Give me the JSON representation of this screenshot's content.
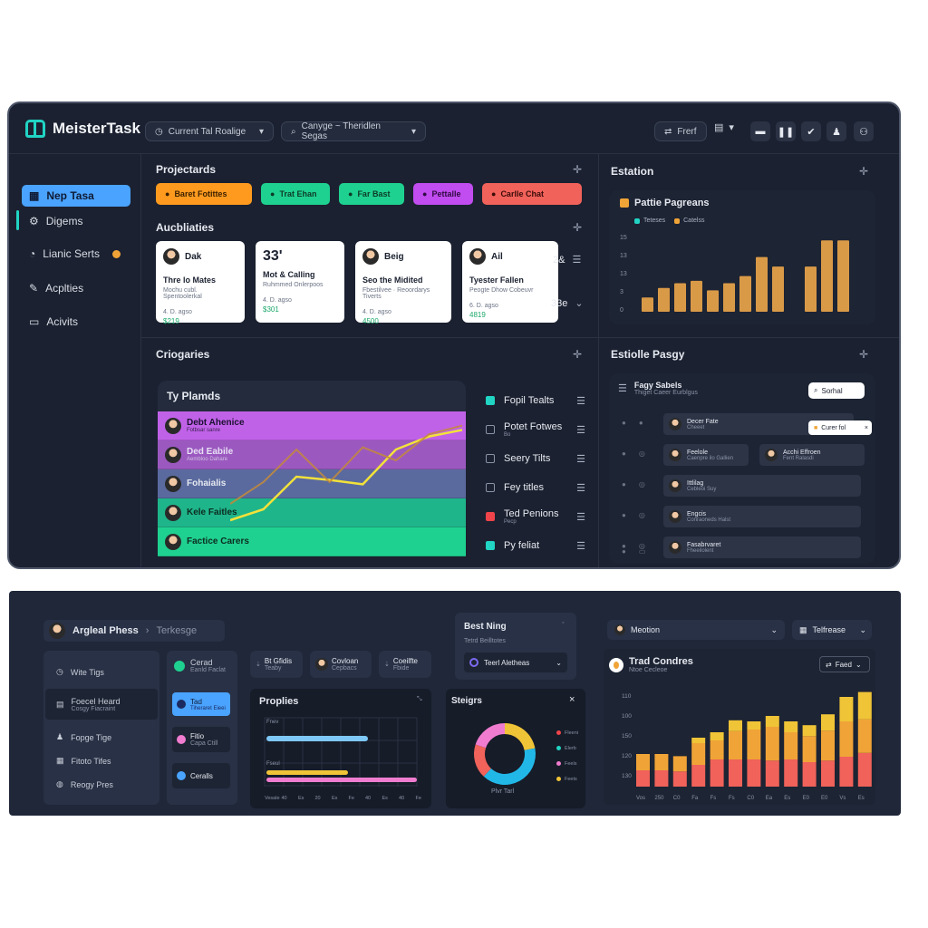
{
  "app": {
    "title": "MeisterTask"
  },
  "header": {
    "dropdown1": "Current Tal Roalige",
    "dropdown2": "Canyge ~ Theridlen Segas",
    "button_label": "Frerf"
  },
  "sidebar": {
    "items": [
      {
        "label": "Nep Tasa"
      },
      {
        "label": "Digems"
      },
      {
        "label": "Lianic Serts"
      },
      {
        "label": "Acplties"
      },
      {
        "label": "Acivits"
      }
    ]
  },
  "project_tasks": {
    "title": "Projectards",
    "chips": [
      {
        "label": "Baret Fotittes",
        "color": "#ff9a1f",
        "text_color": "#3a2100"
      },
      {
        "label": "Trat Ehan",
        "color": "#1fd190",
        "text_color": "#0c3b27"
      },
      {
        "label": "Far Bast",
        "color": "#1fd190",
        "text_color": "#0c3b27"
      },
      {
        "label": "Pettalle",
        "color": "#c14cf0",
        "text_color": "#2e0a40"
      },
      {
        "label": "Carlle Chat",
        "color": "#f0625a",
        "text_color": "#3b0b09"
      }
    ]
  },
  "activities": {
    "title": "Aucbliaties",
    "cards": [
      {
        "name": "Dak",
        "title": "Thre lo Mates",
        "sub": "Mochu cubl. Spentoolerkal",
        "meta": "4. D. agso",
        "value": "$219"
      },
      {
        "name": "33'",
        "title": "Mot & Calling",
        "sub": "Ruhmmed Onlerpoos",
        "meta": "4. D. agso",
        "value": "$301"
      },
      {
        "name": "Beig",
        "title": "Seo the Midited",
        "sub": "Fbestilvee · Reoordarys Tiverts",
        "meta": "4. D. agso",
        "value": "4500"
      },
      {
        "name": "Ail",
        "title": "Tyester Fallen",
        "sub": "Peogte Dhow Cobeuvr",
        "meta": "6. D. agso",
        "value": "4819"
      }
    ],
    "side_top": "2&",
    "side_bottom": "33e"
  },
  "estation": {
    "title": "Estation",
    "chart_title": "Pattie Pagreans",
    "legend": [
      {
        "name": "Teteses",
        "color": "#21d4c4"
      },
      {
        "name": "Catelss",
        "color": "#f0a437"
      }
    ],
    "y_ticks": [
      "15",
      "13",
      "13",
      "3",
      "0"
    ]
  },
  "categories": {
    "title": "Criogaries",
    "panel_title": "Ty Plamds",
    "rows": [
      {
        "name": "Debt Ahenice",
        "sub": "Fotbsar sanre",
        "color": "#c062e8"
      },
      {
        "name": "Ded Eabile",
        "sub": "Aembloo Dahare",
        "color": "#9b59c0"
      },
      {
        "name": "Fohaialis",
        "sub": "",
        "color": "#5a6a9f"
      },
      {
        "name": "Kele Faitles",
        "sub": "",
        "color": "#1fb58a"
      },
      {
        "name": "Factice Carers",
        "sub": "",
        "color": "#1fd190"
      }
    ],
    "legend": [
      {
        "label": "Fopil Tealts",
        "color": "#21d4c4",
        "filled": true
      },
      {
        "label": "Potet Fotwes",
        "sub": "Bo",
        "color": "#8b93a7",
        "filled": false
      },
      {
        "label": "Seery Tilts",
        "color": "#8b93a7",
        "filled": false
      },
      {
        "label": "Fey titles",
        "color": "#8b93a7",
        "filled": false
      },
      {
        "label": "Ted Penions",
        "sub": "Pecp",
        "color": "#f0444a",
        "filled": true
      },
      {
        "label": "Py feliat",
        "color": "#21d4c4",
        "filled": true
      }
    ]
  },
  "estolle": {
    "title": "Estiolle Pasgy",
    "panel_title": "Fagy Sabels",
    "panel_sub": "Thiget Caeer Eurblgus",
    "search_label": "Sorhal",
    "tooltip_label": "Curer fol",
    "items": [
      {
        "name": "Decer Fate",
        "sub": "Cheeet"
      },
      {
        "name": "Feelole",
        "sub": "Caenpre ilo Gallien"
      },
      {
        "name": "Acchi Effroen",
        "sub": "Fent Ralasdi"
      },
      {
        "name": "Ittlilag",
        "sub": "Cebleoi Suy"
      },
      {
        "name": "Engcis",
        "sub": "Conraoneds Halst"
      },
      {
        "name": "Fasabrvaret",
        "sub": "Fheeilolent"
      }
    ]
  },
  "bottom": {
    "breadcrumb1": "Argleal Phess",
    "breadcrumb2": "Terkesge",
    "best_title": "Best Ning",
    "best_sub": "Tetrd Beilltotes",
    "best_select": "Teerl Aletheas",
    "mention_select": "Meotion",
    "tel_select": "Telfrease",
    "nav": [
      {
        "label": "Wite Tigs",
        "sub": ""
      },
      {
        "label": "Foecel Heard",
        "sub": "Cosgy Fiacraint"
      },
      {
        "label": "Fopge Tige",
        "sub": ""
      },
      {
        "label": "Fitoto Tifes",
        "sub": ""
      },
      {
        "label": "Reogy Pres",
        "sub": ""
      }
    ],
    "mid_list": [
      {
        "label": "Cerad",
        "sub": "Eanld Faclat"
      },
      {
        "label": "Tad",
        "sub": "Tiheraret Eieei"
      },
      {
        "label": "Fitio",
        "sub": "Capa Ctill"
      },
      {
        "label": "Ceralls",
        "sub": ""
      }
    ],
    "mini_cards": [
      {
        "label": "Bt Gfidis",
        "sub": "Teaby"
      },
      {
        "label": "Covloan",
        "sub": "Cepbacs"
      },
      {
        "label": "Coeilfte",
        "sub": "Fbide"
      }
    ],
    "proplies": {
      "title": "Proplies",
      "labels": [
        "Fnev",
        "Fseul"
      ],
      "x_ticks": [
        "Vesale",
        "40",
        "Es",
        "20",
        "Es",
        "Fe",
        "40",
        "Es",
        "40",
        "Fe"
      ]
    },
    "steigrs": {
      "title": "Steigrs",
      "legend": [
        {
          "label": "Fleeni",
          "color": "#f0444a"
        },
        {
          "label": "Elerb",
          "color": "#21d4c4"
        },
        {
          "label": "Feels",
          "color": "#f07cd0"
        },
        {
          "label": "Feets",
          "color": "#f0c437"
        }
      ],
      "caption": "Plvr Tarl"
    },
    "trad": {
      "title": "Trad Condres",
      "sub": "Ntoe Cecleoe",
      "button": "Faed",
      "y_ticks": [
        "110",
        "100",
        "150",
        "120",
        "130"
      ],
      "x_ticks": [
        "Vos",
        "250",
        "C0",
        "Fa",
        "Fs",
        "Fs",
        "C0",
        "Ea",
        "Es",
        "E0",
        "E0",
        "Vs",
        "Es"
      ]
    }
  },
  "chart_data": [
    {
      "type": "bar",
      "title": "Pattie Pagreans",
      "series": [
        {
          "name": "Catelss",
          "values": [
            3,
            5,
            6,
            6.5,
            4.5,
            6,
            7.5,
            11.5,
            9.5,
            0,
            9.5,
            15,
            15
          ]
        }
      ],
      "ylim": [
        0,
        16
      ]
    },
    {
      "type": "line",
      "title": "Ty Plamds",
      "series": [
        {
          "name": "yellow",
          "values": [
            5,
            15,
            45,
            42,
            38,
            70,
            82,
            88
          ]
        },
        {
          "name": "orange",
          "values": [
            20,
            40,
            70,
            40,
            72,
            60,
            84,
            92
          ]
        }
      ]
    },
    {
      "type": "pie",
      "title": "Steigrs",
      "series": [
        {
          "name": "share",
          "values": [
            22,
            40,
            18,
            20
          ]
        }
      ]
    },
    {
      "type": "bar",
      "title": "Trad Condres",
      "series": [
        {
          "name": "red",
          "values": [
            30,
            30,
            28,
            40,
            50,
            50,
            50,
            48,
            50,
            45,
            48,
            55,
            62
          ]
        },
        {
          "name": "orange",
          "values": [
            30,
            30,
            28,
            40,
            35,
            52,
            55,
            62,
            50,
            48,
            55,
            65,
            62
          ]
        },
        {
          "name": "yellow",
          "values": [
            0,
            0,
            0,
            10,
            15,
            20,
            15,
            20,
            20,
            20,
            30,
            45,
            50
          ]
        }
      ]
    }
  ]
}
